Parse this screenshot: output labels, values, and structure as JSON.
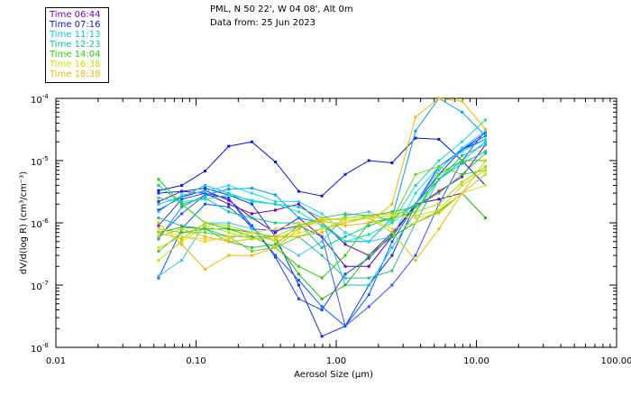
{
  "header": {
    "location": "PML, N 50 22', W 04 08', Alt 0m",
    "date": "Data from: 25 Jun 2023"
  },
  "legend": [
    {
      "label": "Time 06:44",
      "color": "#7a00a8"
    },
    {
      "label": "Time 07:16",
      "color": "#0018e0"
    },
    {
      "label": "Time 11:13",
      "color": "#00c8e0"
    },
    {
      "label": "Time 12:23",
      "color": "#00c8a0"
    },
    {
      "label": "Time 14:04",
      "color": "#30d000"
    },
    {
      "label": "Time 16:38",
      "color": "#c8e000"
    },
    {
      "label": "Time 18:38",
      "color": "#f0b800"
    }
  ],
  "chart_data": {
    "type": "line",
    "xscale": "log",
    "yscale": "log",
    "xlim": [
      0.01,
      100
    ],
    "ylim": [
      1e-08,
      0.0001
    ],
    "xlabel": "Aerosol Size (µm)",
    "ylabel": "dV/d(log R) (cm³/cm⁻³)",
    "x_ticks": [
      {
        "value": 0.01,
        "label": "0.01"
      },
      {
        "value": 0.1,
        "label": "0.10"
      },
      {
        "value": 1,
        "label": "1.00"
      },
      {
        "value": 10,
        "label": "10.00"
      },
      {
        "value": 100,
        "label": "100.00"
      }
    ],
    "y_ticks": [
      {
        "value": 0.0001,
        "exp": "-4"
      },
      {
        "value": 1e-05,
        "exp": "-5"
      },
      {
        "value": 1e-06,
        "exp": "-6"
      },
      {
        "value": 1e-07,
        "exp": "-7"
      },
      {
        "value": 1e-08,
        "exp": "-8"
      }
    ],
    "x": [
      0.054,
      0.079,
      0.116,
      0.171,
      0.25,
      0.368,
      0.54,
      0.79,
      1.16,
      1.71,
      2.5,
      3.68,
      5.4,
      7.9,
      11.6
    ],
    "series": [
      {
        "name": "06:44 a",
        "color": "#7a00a8",
        "values": [
          2.2e-06,
          3.2e-06,
          3e-06,
          2e-06,
          1.4e-06,
          1.6e-06,
          2e-06,
          1e-06,
          4.5e-07,
          3e-07,
          7e-07,
          1.8e-06,
          3.2e-06,
          5.5e-06,
          1.8e-05
        ]
      },
      {
        "name": "06:44 b",
        "color": "#5a00c0",
        "values": [
          1.6e-06,
          2.6e-06,
          3.3e-06,
          2.3e-06,
          1.2e-06,
          7e-07,
          1.2e-06,
          6e-07,
          2e-07,
          2e-07,
          6e-07,
          2e-06,
          2.4e-06,
          3e-06,
          6e-06
        ]
      },
      {
        "name": "07:16 a",
        "color": "#0018e0",
        "values": [
          3.3e-06,
          4e-06,
          6.8e-06,
          1.7e-05,
          2e-05,
          9.5e-06,
          3.2e-06,
          2.7e-06,
          6e-06,
          1e-05,
          9.2e-06,
          2.3e-05,
          2.2e-05,
          1e-05,
          4e-06
        ]
      },
      {
        "name": "07:16 b",
        "color": "#1030f0",
        "values": [
          3e-06,
          3.2e-06,
          3.6e-06,
          2.8e-06,
          2e-06,
          6e-07,
          1e-07,
          1.5e-08,
          2.2e-08,
          1e-07,
          3e-07,
          2e-06,
          6e-06,
          1.5e-05,
          2.2e-05
        ]
      },
      {
        "name": "07:16 c",
        "color": "#2040e8",
        "values": [
          9e-07,
          2.4e-06,
          3e-06,
          2.5e-06,
          9e-07,
          2.8e-07,
          6e-08,
          4e-08,
          1.5e-07,
          2.7e-07,
          6.5e-07,
          2e-06,
          8e-06,
          1.5e-05,
          2.5e-05
        ]
      },
      {
        "name": "07:16 d",
        "color": "#3050ff",
        "values": [
          6e-07,
          1.4e-06,
          2.8e-06,
          2.5e-06,
          8e-07,
          7.5e-07,
          9e-07,
          6e-07,
          2.2e-08,
          4.5e-08,
          1e-07,
          3e-07,
          2e-06,
          1e-05,
          3e-05
        ]
      },
      {
        "name": "07:16 e",
        "color": "#0060ff",
        "values": [
          1.3e-07,
          8e-07,
          2e-06,
          1.8e-06,
          9e-07,
          3e-07,
          1.2e-07,
          4.5e-08,
          2.2e-08,
          7e-08,
          5e-07,
          2e-06,
          8e-06,
          1.5e-05,
          2.8e-05
        ]
      },
      {
        "name": "11:13 a",
        "color": "#00a0f0",
        "values": [
          5.5e-07,
          1.8e-06,
          2.8e-06,
          3.5e-06,
          3.6e-06,
          2.8e-06,
          1.2e-06,
          1e-06,
          5e-07,
          5e-07,
          1.2e-06,
          3e-05,
          0.0001,
          6e-05,
          2.5e-05
        ]
      },
      {
        "name": "11:13 b",
        "color": "#00c8e0",
        "values": [
          2e-06,
          2.6e-06,
          4e-06,
          3e-06,
          2.2e-06,
          2e-06,
          1.8e-06,
          1.2e-06,
          1e-07,
          1e-07,
          4e-07,
          1.5e-06,
          5e-06,
          1e-05,
          2e-05
        ]
      },
      {
        "name": "11:13 c",
        "color": "#20d8f0",
        "values": [
          1.5e-06,
          2.8e-06,
          3.2e-06,
          4e-06,
          3e-06,
          2.2e-06,
          2.2e-06,
          1.4e-06,
          7e-07,
          5e-07,
          6e-07,
          3e-06,
          8e-06,
          1.4e-05,
          2.2e-05
        ]
      },
      {
        "name": "11:13 d",
        "color": "#40c0ff",
        "values": [
          1.4e-07,
          2.5e-07,
          1e-06,
          1e-06,
          8e-07,
          5e-07,
          3e-07,
          5e-07,
          1.3e-06,
          1.5e-06,
          1e-06,
          2e-06,
          7e-06,
          1.6e-05,
          3e-05
        ]
      },
      {
        "name": "12:23 a",
        "color": "#00c8a0",
        "values": [
          4e-06,
          2e-06,
          2.5e-06,
          1.5e-06,
          1.2e-06,
          1e-06,
          1e-06,
          4e-07,
          6e-07,
          9e-07,
          1.2e-06,
          2e-06,
          5e-06,
          9e-06,
          1.4e-05
        ]
      },
      {
        "name": "12:23 b",
        "color": "#10e0b0",
        "values": [
          2.5e-06,
          2.2e-06,
          2.4e-06,
          2.8e-06,
          2.3e-06,
          2e-06,
          1.5e-06,
          9e-07,
          5e-07,
          6.5e-07,
          1e-06,
          4e-06,
          1e-05,
          2e-05,
          4.5e-05
        ]
      },
      {
        "name": "12:23 c",
        "color": "#30b8a0",
        "values": [
          1.2e-06,
          9e-07,
          8e-07,
          6e-07,
          6e-07,
          6e-07,
          6e-07,
          3e-07,
          1.3e-07,
          1.3e-07,
          1.7e-07,
          1e-06,
          5e-06,
          1.2e-05,
          1.8e-05
        ]
      },
      {
        "name": "14:04 a",
        "color": "#30d000",
        "values": [
          5e-06,
          2e-06,
          1e-06,
          8e-07,
          6e-07,
          4e-07,
          2e-07,
          1.3e-07,
          3e-07,
          1e-06,
          1.2e-06,
          1.5e-06,
          6e-06,
          1e-05,
          1e-05
        ]
      },
      {
        "name": "14:04 b",
        "color": "#60d820",
        "values": [
          8e-07,
          7e-07,
          7e-07,
          6e-07,
          3.5e-07,
          4e-07,
          6e-07,
          8e-07,
          1e-06,
          1.3e-06,
          1.1e-06,
          6e-06,
          8e-06,
          6e-06,
          7e-06
        ]
      },
      {
        "name": "14:04 c",
        "color": "#20b800",
        "values": [
          7e-07,
          8.5e-07,
          8e-07,
          8e-07,
          7e-07,
          5e-07,
          1.5e-07,
          6e-08,
          1e-07,
          3e-07,
          6e-07,
          1e-06,
          1.5e-06,
          3e-06,
          1.2e-06
        ]
      },
      {
        "name": "14:04 d",
        "color": "#40c040",
        "values": [
          3.5e-07,
          7e-07,
          8e-07,
          5e-07,
          4e-07,
          4.5e-07,
          9e-07,
          1.2e-06,
          1.4e-06,
          1.3e-06,
          1.5e-06,
          1.8e-06,
          3e-06,
          6e-06,
          1.3e-05
        ]
      },
      {
        "name": "16:38 a",
        "color": "#c8e000",
        "values": [
          2.5e-07,
          5e-07,
          9e-07,
          7e-07,
          5.5e-07,
          5.5e-07,
          8e-07,
          1.2e-06,
          1.1e-06,
          1.2e-06,
          1.3e-06,
          1.3e-06,
          1.6e-06,
          4e-06,
          7e-06
        ]
      },
      {
        "name": "16:38 b",
        "color": "#a0d800",
        "values": [
          7e-07,
          5.5e-07,
          1e-06,
          9e-07,
          7e-07,
          6e-07,
          9e-07,
          1.1e-06,
          1.2e-06,
          1.3e-06,
          1.4e-06,
          1.5e-06,
          2e-06,
          4.5e-06,
          8e-06
        ]
      },
      {
        "name": "16:38 c",
        "color": "#d8e020",
        "values": [
          4e-07,
          6e-07,
          5e-07,
          6e-07,
          7e-07,
          5e-07,
          7e-07,
          8e-07,
          1.1e-06,
          1.2e-06,
          8e-07,
          1e-06,
          1.6e-06,
          3e-06,
          6e-06
        ]
      },
      {
        "name": "18:38 a",
        "color": "#f0b800",
        "values": [
          1e-06,
          4.5e-07,
          1.8e-07,
          3e-07,
          3e-07,
          4e-07,
          8e-07,
          1.1e-06,
          9e-07,
          1e-06,
          2e-06,
          5e-05,
          0.0001,
          9e-05,
          3.2e-05
        ]
      },
      {
        "name": "18:38 b",
        "color": "#e0c000",
        "values": [
          6e-07,
          8e-07,
          6e-07,
          5e-07,
          5.5e-07,
          6e-07,
          6e-07,
          7e-07,
          1e-06,
          1.2e-06,
          7e-07,
          2.5e-07,
          8e-07,
          3e-06,
          1e-05
        ]
      },
      {
        "name": "18:38 c",
        "color": "#f0d040",
        "values": [
          8e-07,
          6e-07,
          5.5e-07,
          5.5e-07,
          7e-07,
          8e-07,
          1e-06,
          1e-06,
          1e-06,
          1.2e-06,
          1.3e-06,
          1.2e-06,
          1.4e-06,
          3e-06,
          4e-06
        ]
      }
    ]
  }
}
